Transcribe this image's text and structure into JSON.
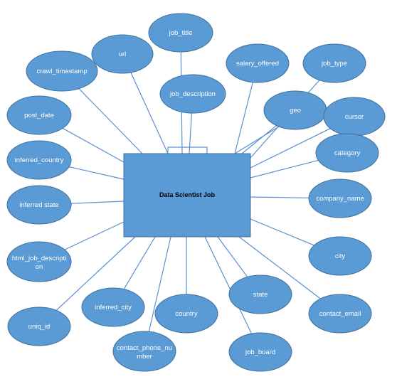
{
  "diagram": {
    "center": {
      "label": "Data Scientist Job"
    },
    "attributes": [
      {
        "id": "job_title",
        "label": "job_title"
      },
      {
        "id": "url",
        "label": "url"
      },
      {
        "id": "crawl_timestamp",
        "label": "crawl_timestamp"
      },
      {
        "id": "salary_offered",
        "label": "salary_offered"
      },
      {
        "id": "job_type",
        "label": "job_type"
      },
      {
        "id": "job_description",
        "label": "job_description"
      },
      {
        "id": "geo",
        "label": "geo"
      },
      {
        "id": "cursor",
        "label": "cursor"
      },
      {
        "id": "post_date",
        "label": "post_date"
      },
      {
        "id": "category",
        "label": "category"
      },
      {
        "id": "inferred_country",
        "label": "inferred_country"
      },
      {
        "id": "inferred_state",
        "label": "inferred state"
      },
      {
        "id": "company_name",
        "label": "company_name"
      },
      {
        "id": "html_job_description",
        "label": "html_job_descripti",
        "label_line2": "on"
      },
      {
        "id": "city",
        "label": "city"
      },
      {
        "id": "state",
        "label": "state"
      },
      {
        "id": "inferred_city",
        "label": "inferred_city"
      },
      {
        "id": "country",
        "label": "country"
      },
      {
        "id": "contact_email",
        "label": "contact_email"
      },
      {
        "id": "uniq_id",
        "label": "uniq_id"
      },
      {
        "id": "contact_phone_number",
        "label": "contact_phone_nu",
        "label_line2": "mber"
      },
      {
        "id": "job_board",
        "label": "job_board"
      }
    ]
  },
  "colors": {
    "node_fill": "#5b9bd5",
    "node_stroke": "#41719c",
    "edge": "#5b8fce",
    "label": "#ffffff",
    "center_label": "#000000"
  }
}
